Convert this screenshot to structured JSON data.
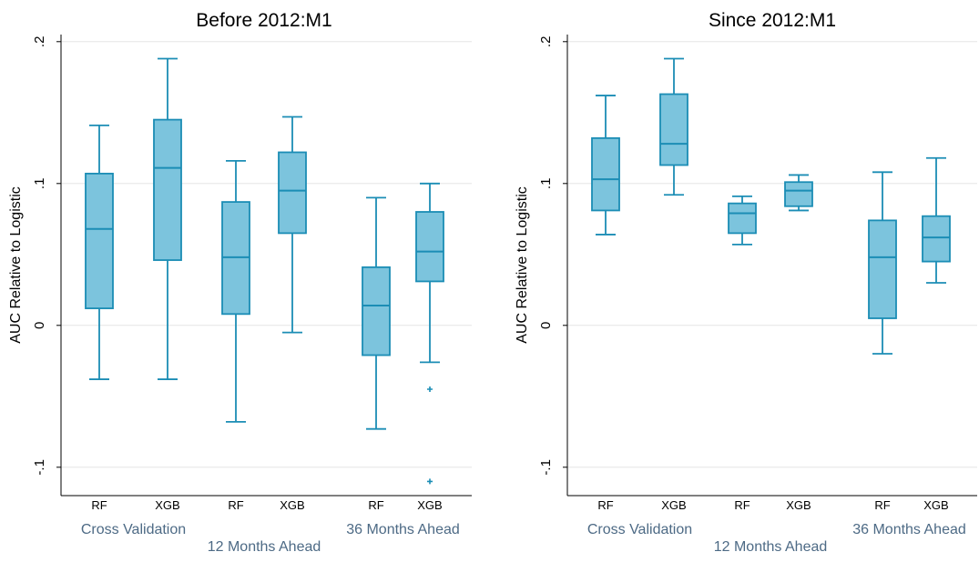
{
  "colors": {
    "box_fill": "#7cc4dd",
    "box_stroke": "#1b8db5",
    "grid": "#e6e6e6",
    "axis": "#000000",
    "group_label": "#4d6a85",
    "background": "#ffffff"
  },
  "chart_data": [
    {
      "type": "box",
      "title": "Before 2012:M1",
      "ylabel": "AUC Relative to Logistic",
      "ylim": [
        -0.12,
        0.205
      ],
      "yticks": [
        0.2,
        0.1,
        0,
        -0.1
      ],
      "ytick_labels": [
        ".2",
        ".1",
        "0",
        "-.1"
      ],
      "grid": true,
      "categories": [
        "RF",
        "XGB",
        "RF",
        "XGB",
        "RF",
        "XGB"
      ],
      "groups": [
        {
          "label": "Cross Validation",
          "row": 1
        },
        {
          "label": "12 Months Ahead",
          "row": 2
        },
        {
          "label": "36 Months Ahead",
          "row": 1
        }
      ],
      "boxes": [
        {
          "label": "RF",
          "group": 0,
          "whisker_low": -0.038,
          "q1": 0.012,
          "median": 0.068,
          "q3": 0.107,
          "whisker_high": 0.141,
          "outliers": []
        },
        {
          "label": "XGB",
          "group": 0,
          "whisker_low": -0.038,
          "q1": 0.046,
          "median": 0.111,
          "q3": 0.145,
          "whisker_high": 0.188,
          "outliers": []
        },
        {
          "label": "RF",
          "group": 1,
          "whisker_low": -0.068,
          "q1": 0.008,
          "median": 0.048,
          "q3": 0.087,
          "whisker_high": 0.116,
          "outliers": []
        },
        {
          "label": "XGB",
          "group": 1,
          "whisker_low": -0.005,
          "q1": 0.065,
          "median": 0.095,
          "q3": 0.122,
          "whisker_high": 0.147,
          "outliers": []
        },
        {
          "label": "RF",
          "group": 2,
          "whisker_low": -0.073,
          "q1": -0.021,
          "median": 0.014,
          "q3": 0.041,
          "whisker_high": 0.09,
          "outliers": []
        },
        {
          "label": "XGB",
          "group": 2,
          "whisker_low": -0.026,
          "q1": 0.031,
          "median": 0.052,
          "q3": 0.08,
          "whisker_high": 0.1,
          "outliers": [
            -0.045,
            -0.11
          ]
        }
      ]
    },
    {
      "type": "box",
      "title": "Since 2012:M1",
      "ylabel": "AUC Relative to Logistic",
      "ylim": [
        -0.12,
        0.205
      ],
      "yticks": [
        0.2,
        0.1,
        0,
        -0.1
      ],
      "ytick_labels": [
        ".2",
        ".1",
        "0",
        "-.1"
      ],
      "grid": true,
      "categories": [
        "RF",
        "XGB",
        "RF",
        "XGB",
        "RF",
        "XGB"
      ],
      "groups": [
        {
          "label": "Cross Validation",
          "row": 1
        },
        {
          "label": "12 Months Ahead",
          "row": 2
        },
        {
          "label": "36 Months Ahead",
          "row": 1
        }
      ],
      "boxes": [
        {
          "label": "RF",
          "group": 0,
          "whisker_low": 0.064,
          "q1": 0.081,
          "median": 0.103,
          "q3": 0.132,
          "whisker_high": 0.162,
          "outliers": []
        },
        {
          "label": "XGB",
          "group": 0,
          "whisker_low": 0.092,
          "q1": 0.113,
          "median": 0.128,
          "q3": 0.163,
          "whisker_high": 0.188,
          "outliers": []
        },
        {
          "label": "RF",
          "group": 1,
          "whisker_low": 0.057,
          "q1": 0.065,
          "median": 0.079,
          "q3": 0.086,
          "whisker_high": 0.091,
          "outliers": []
        },
        {
          "label": "XGB",
          "group": 1,
          "whisker_low": 0.081,
          "q1": 0.084,
          "median": 0.095,
          "q3": 0.101,
          "whisker_high": 0.106,
          "outliers": []
        },
        {
          "label": "RF",
          "group": 2,
          "whisker_low": -0.02,
          "q1": 0.005,
          "median": 0.048,
          "q3": 0.074,
          "whisker_high": 0.108,
          "outliers": []
        },
        {
          "label": "XGB",
          "group": 2,
          "whisker_low": 0.03,
          "q1": 0.045,
          "median": 0.062,
          "q3": 0.077,
          "whisker_high": 0.118,
          "outliers": []
        }
      ]
    }
  ]
}
